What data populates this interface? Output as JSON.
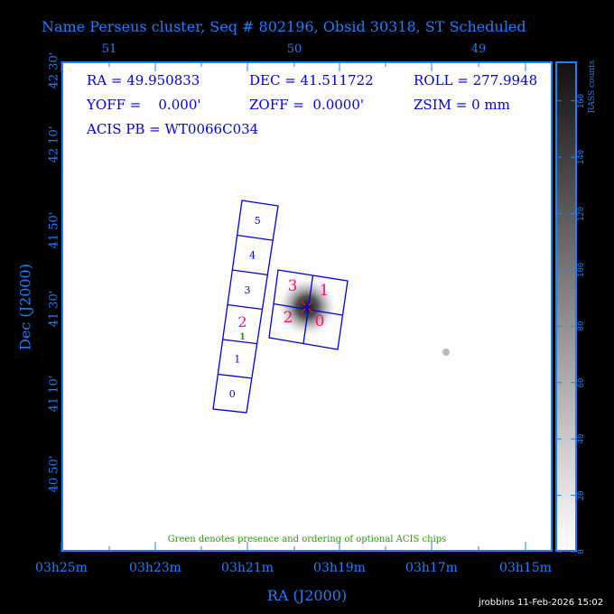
{
  "title": "Name Perseus cluster, Seq # 802196, Obsid 30318, ST Scheduled",
  "info": {
    "ra": "RA = 49.950833",
    "dec": "DEC = 41.511722",
    "roll": "ROLL = 277.9948",
    "yoff": "YOFF =    0.000'",
    "zoff": "ZOFF =  0.0000'",
    "zsim": "ZSIM = 0 mm",
    "acis_pb": "ACIS PB = WT0066C034"
  },
  "note": "Green denotes presence and ordering of optional ACIS chips",
  "footer": "jrobbins 11-Feb-2026 15:02",
  "colors": {
    "axes": "#1e7fff",
    "chips": "#0000e0",
    "selected_chips": "#ff0a7a",
    "optional": "#2a9a00"
  },
  "chart_data": {
    "type": "heatmap",
    "xlabel": "RA (J2000)",
    "ylabel": "Dec (J2000)",
    "x_ticks": [
      "03h25m",
      "03h23m",
      "03h21m",
      "03h19m",
      "03h17m",
      "03h15m"
    ],
    "x_top_ticks": [
      "51",
      "50",
      "49"
    ],
    "y_ticks": [
      "42 30'",
      "42 10'",
      "41 50'",
      "41 30'",
      "41 10'",
      "40 50'"
    ],
    "colorbar": {
      "label": "RASS counts",
      "ticks": [
        "0",
        "20",
        "40",
        "60",
        "80",
        "100",
        "120",
        "140",
        "160"
      ],
      "range": [
        0,
        174
      ],
      "colormap": "white-to-black"
    },
    "acis_s_chips": [
      "0",
      "1",
      "2",
      "3",
      "4",
      "5"
    ],
    "acis_s_optional": {
      "chip": "2",
      "order": "1"
    },
    "acis_i_chips": [
      "3",
      "1",
      "2",
      "0"
    ],
    "target": {
      "ra": 49.950833,
      "dec": 41.511722
    }
  }
}
